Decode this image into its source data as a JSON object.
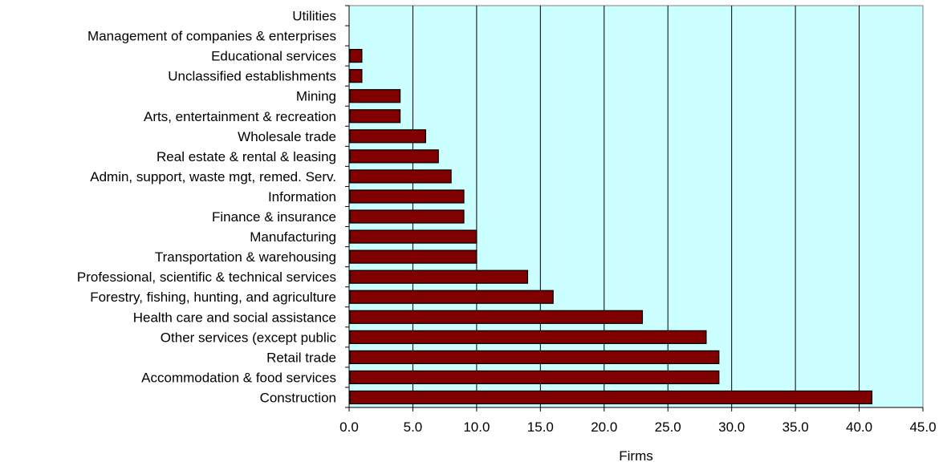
{
  "chart_data": {
    "type": "bar",
    "orientation": "horizontal",
    "categories": [
      "Utilities",
      "Management of companies & enterprises",
      "Educational services",
      "Unclassified establishments",
      "Mining",
      "Arts, entertainment & recreation",
      "Wholesale trade",
      "Real estate & rental & leasing",
      "Admin, support, waste mgt, remed. Serv.",
      "Information",
      "Finance & insurance",
      "Manufacturing",
      "Transportation & warehousing",
      "Professional, scientific & technical services",
      "Forestry, fishing, hunting, and agriculture",
      "Health care and social assistance",
      "Other services (except public",
      "Retail trade",
      "Accommodation & food services",
      "Construction"
    ],
    "values": [
      0,
      0,
      1,
      1,
      4,
      4,
      6,
      7,
      8,
      9,
      9,
      10,
      10,
      14,
      16,
      23,
      28,
      29,
      29,
      41
    ],
    "xlabel": "Firms",
    "xlim": [
      0,
      45
    ],
    "xticks": [
      "0.0",
      "5.0",
      "10.0",
      "15.0",
      "20.0",
      "25.0",
      "30.0",
      "35.0",
      "40.0",
      "45.0"
    ],
    "grid": "vertical",
    "colors": {
      "bar": "#800000",
      "plot_background": "#ccffff",
      "gridline": "#000000"
    }
  }
}
